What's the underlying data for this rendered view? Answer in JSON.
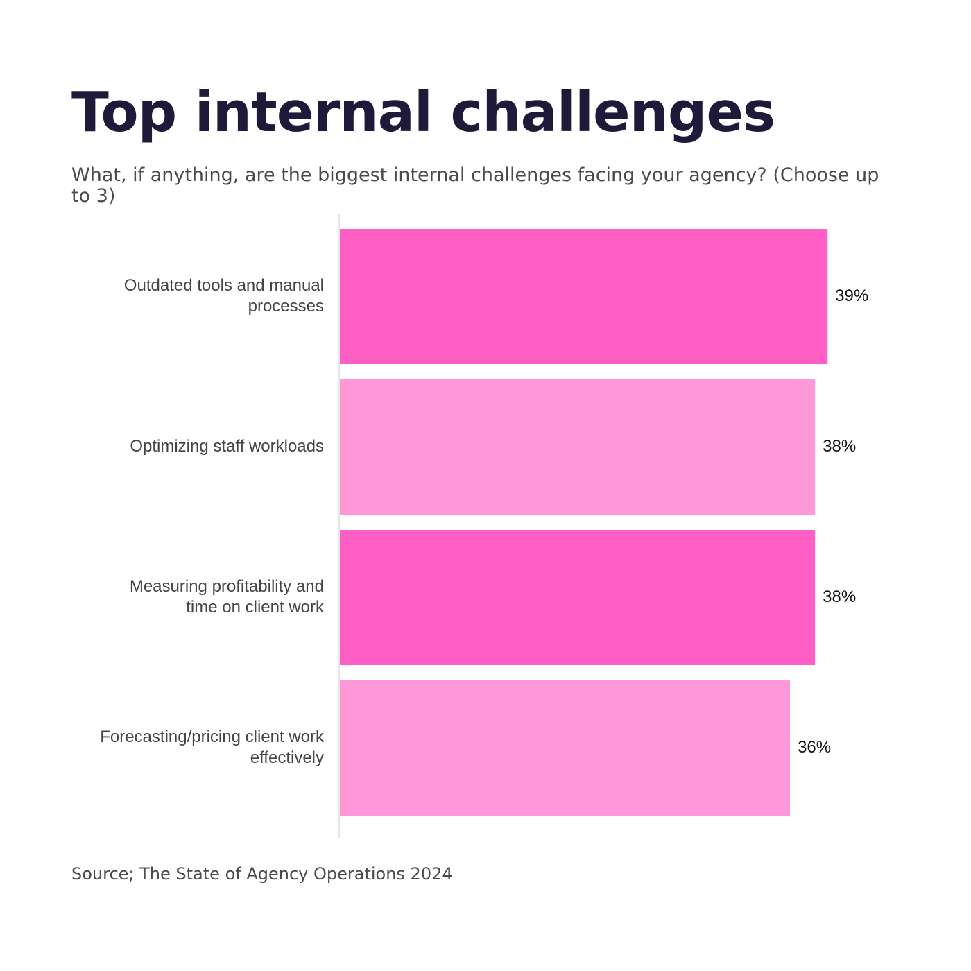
{
  "title": "Top internal challenges",
  "subtitle": "What, if anything, are the biggest internal challenges facing your agency? (Choose up to 3)",
  "source": "Source; The State of Agency Operations 2024",
  "colors": {
    "title": "#1e1b3a",
    "bar_dark": "#ff5fc4",
    "bar_light": "#ff97d8",
    "axis": "#dddddd"
  },
  "chart_data": {
    "type": "bar",
    "orientation": "horizontal",
    "title": "Top internal challenges",
    "xlabel": "",
    "ylabel": "",
    "xlim": [
      0,
      100
    ],
    "grid": false,
    "categories": [
      [
        "Outdated tools and manual",
        "processes"
      ],
      [
        "Optimizing staff workloads"
      ],
      [
        "Measuring profitability and",
        "time on client work"
      ],
      [
        "Forecasting/pricing client work",
        "effectively"
      ]
    ],
    "values": [
      39,
      38,
      38,
      36
    ],
    "value_labels": [
      "39%",
      "38%",
      "38%",
      "36%"
    ],
    "bar_colors": [
      "#ff5fc4",
      "#ff97d8",
      "#ff5fc4",
      "#ff97d8"
    ]
  }
}
